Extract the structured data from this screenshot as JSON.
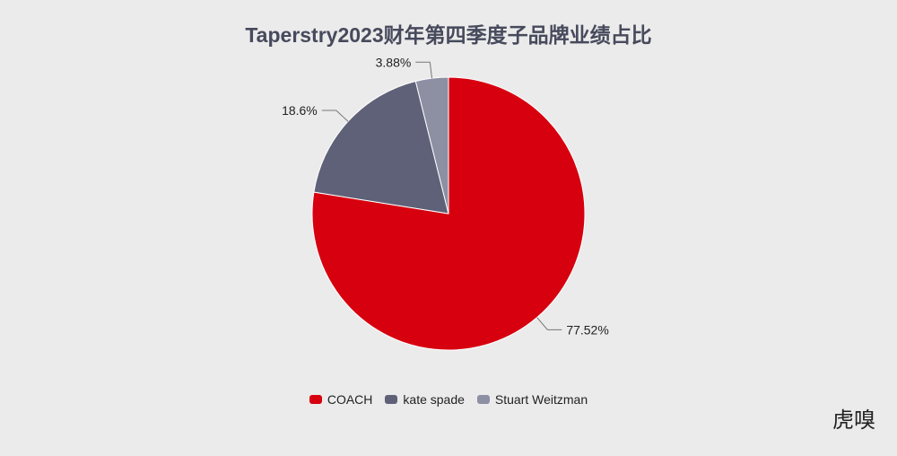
{
  "chart_data": {
    "type": "pie",
    "title": "Taperstry2023财年第四季度子品牌业绩占比",
    "start_angle": "top, clockwise",
    "legend_position": "bottom",
    "slices": [
      {
        "name": "COACH",
        "value": 77.52,
        "label": "77.52%",
        "color": "#d7000f"
      },
      {
        "name": "kate spade",
        "value": 18.6,
        "label": "18.6%",
        "color": "#5f6178"
      },
      {
        "name": "Stuart Weitzman",
        "value": 3.88,
        "label": "3.88%",
        "color": "#8d8fa3"
      }
    ]
  },
  "watermark": "虎嗅"
}
